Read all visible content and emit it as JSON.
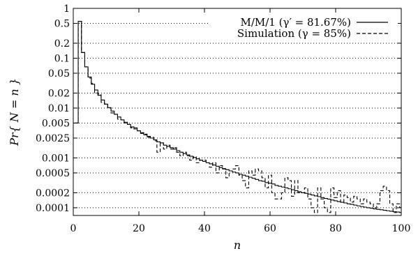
{
  "chart_data": {
    "type": "line",
    "xlabel": "n",
    "ylabel": "Pr{ N = n }",
    "xlim": [
      0,
      100
    ],
    "ylim": [
      7e-05,
      1
    ],
    "yscale": "log",
    "grid": "horizontal dotted at y ticks",
    "legend_position": "top-right",
    "x_ticks": [
      0,
      20,
      40,
      60,
      80,
      100
    ],
    "x_tick_labels": [
      "0",
      "20",
      "40",
      "60",
      "80",
      "100"
    ],
    "y_ticks": [
      1,
      0.5,
      0.2,
      0.1,
      0.05,
      0.02,
      0.01,
      0.005,
      0.0025,
      0.001,
      0.0005,
      0.0002,
      0.0001
    ],
    "y_tick_labels": [
      "1",
      "0.5",
      "0.2",
      "0.1",
      "0.05",
      "0.02",
      "0.01",
      "0.005",
      "0.0025",
      "0.001",
      "0.0005",
      "0.0002",
      "0.0001"
    ],
    "series": [
      {
        "name": "M/M/1 (γ′ = 81.67%)",
        "style": "solid",
        "x": [
          1,
          2,
          3,
          4,
          5,
          6,
          7,
          8,
          9,
          10,
          11,
          12,
          13,
          14,
          15,
          16,
          17,
          18,
          19,
          20,
          21,
          22,
          23,
          24,
          25,
          26,
          27,
          28,
          29,
          30,
          31,
          32,
          33,
          34,
          35,
          36,
          37,
          38,
          39,
          40,
          41,
          42,
          43,
          44,
          45,
          46,
          47,
          48,
          49,
          50,
          51,
          52,
          53,
          54,
          55,
          56,
          57,
          58,
          59,
          60,
          61,
          62,
          63,
          64,
          65,
          66,
          67,
          68,
          69,
          70,
          71,
          72,
          73,
          74,
          75,
          76,
          77,
          78,
          79,
          80,
          81,
          82,
          83,
          84,
          85,
          86,
          87,
          88,
          89,
          90,
          91,
          92,
          93,
          94,
          95,
          96,
          97,
          98,
          99,
          100
        ],
        "y": [
          0.005,
          0.55,
          0.13,
          0.067,
          0.042,
          0.03,
          0.023,
          0.018,
          0.0145,
          0.012,
          0.0102,
          0.0087,
          0.0075,
          0.0066,
          0.0058,
          0.0052,
          0.0047,
          0.0042,
          0.0038,
          0.0035,
          0.0032,
          0.0029,
          0.0027,
          0.0025,
          0.0023,
          0.0021,
          0.002,
          0.0018,
          0.0017,
          0.0016,
          0.0015,
          0.0014,
          0.0013,
          0.00122,
          0.00115,
          0.00108,
          0.00102,
          0.00096,
          0.0009,
          0.00085,
          0.0008,
          0.00076,
          0.00072,
          0.00068,
          0.00064,
          0.00061,
          0.00058,
          0.00055,
          0.00052,
          0.0005,
          0.00047,
          0.00045,
          0.00043,
          0.00041,
          0.00039,
          0.00037,
          0.00035,
          0.00034,
          0.00032,
          0.00031,
          0.0003,
          0.00028,
          0.00027,
          0.00026,
          0.00025,
          0.00024,
          0.00023,
          0.00022,
          0.00021,
          0.0002,
          0.000195,
          0.000188,
          0.00018,
          0.000173,
          0.000167,
          0.00016,
          0.000154,
          0.000149,
          0.000143,
          0.000138,
          0.000133,
          0.000129,
          0.000125,
          0.00012,
          0.000117,
          0.000113,
          0.000109,
          0.000106,
          0.000103,
          0.0001,
          9.8e-05,
          9.5e-05,
          9.3e-05,
          9.1e-05,
          8.9e-05,
          8.7e-05,
          8.5e-05,
          8.3e-05,
          8.2e-05,
          8e-05
        ]
      },
      {
        "name": "Simulation (γ = 85%)",
        "style": "dashed",
        "x": [
          1,
          2,
          3,
          4,
          5,
          6,
          7,
          8,
          9,
          10,
          11,
          12,
          13,
          14,
          15,
          16,
          17,
          18,
          19,
          20,
          21,
          22,
          23,
          24,
          25,
          26,
          27,
          28,
          29,
          30,
          31,
          32,
          33,
          34,
          35,
          36,
          37,
          38,
          39,
          40,
          41,
          42,
          43,
          44,
          45,
          46,
          47,
          48,
          49,
          50,
          51,
          52,
          53,
          54,
          55,
          56,
          57,
          58,
          59,
          60,
          61,
          62,
          63,
          64,
          65,
          66,
          67,
          68,
          69,
          70,
          71,
          72,
          73,
          74,
          75,
          76,
          77,
          78,
          79,
          80,
          81,
          82,
          83,
          84,
          85,
          86,
          87,
          88,
          89,
          90,
          91,
          92,
          93,
          94,
          95,
          96,
          97,
          98,
          99,
          100
        ],
        "y": [
          0.005,
          0.55,
          0.13,
          0.067,
          0.04,
          0.031,
          0.02,
          0.019,
          0.013,
          0.012,
          0.01,
          0.008,
          0.0075,
          0.006,
          0.0058,
          0.005,
          0.0047,
          0.004,
          0.004,
          0.0035,
          0.0031,
          0.003,
          0.0026,
          0.0026,
          0.0022,
          0.0013,
          0.002,
          0.0015,
          0.0018,
          0.0015,
          0.0016,
          0.0013,
          0.0011,
          0.0013,
          0.0011,
          0.0009,
          0.00105,
          0.0008,
          0.0009,
          0.0009,
          0.0008,
          0.00065,
          0.0008,
          0.0005,
          0.0007,
          0.0006,
          0.0004,
          0.00055,
          0.0006,
          0.0007,
          0.00045,
          0.00035,
          0.00025,
          0.00055,
          0.00045,
          0.0006,
          0.00055,
          0.0004,
          0.00025,
          0.00045,
          0.0002,
          0.00015,
          0.00015,
          0.0002,
          0.0004,
          0.00035,
          0.00017,
          0.00035,
          0.0002,
          0.0002,
          0.00025,
          0.00015,
          0.0001,
          8e-05,
          0.00025,
          0.00015,
          0.0001,
          8e-05,
          0.00025,
          0.00016,
          0.00022,
          0.00013,
          0.00018,
          0.00016,
          0.00013,
          0.00017,
          0.00015,
          0.00012,
          0.00015,
          0.00013,
          0.00012,
          0.0001,
          0.00012,
          0.00022,
          0.00027,
          0.00022,
          0.00012,
          8e-05,
          0.00012,
          0.0001
        ]
      }
    ]
  }
}
